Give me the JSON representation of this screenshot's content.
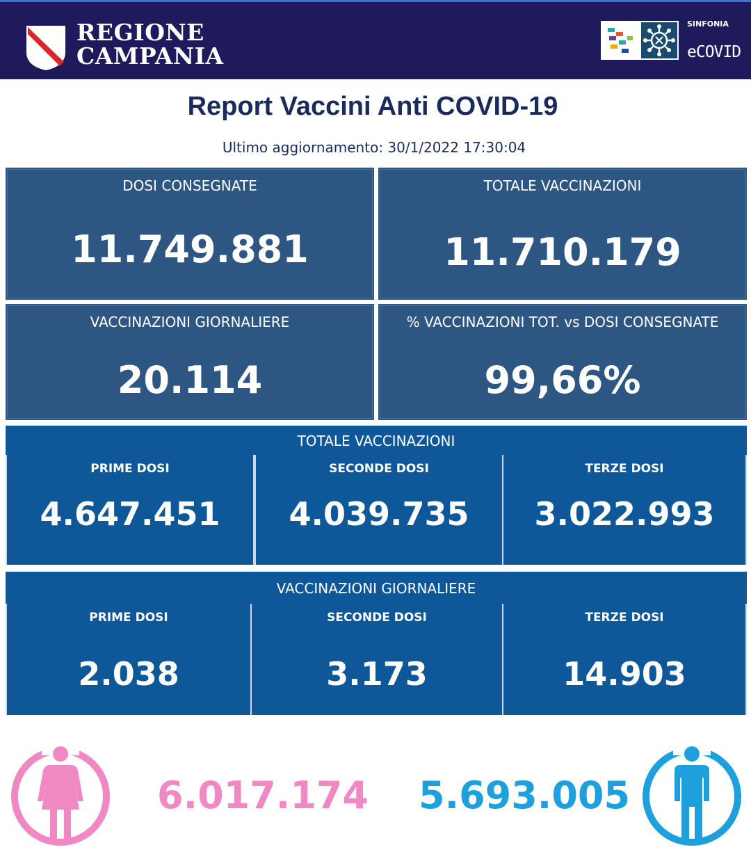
{
  "header": {
    "brand_line1": "REGIONE",
    "brand_line2": "CAMPANIA",
    "sinfonia": "SINFONIA",
    "ecovid": "eCOVID"
  },
  "report": {
    "title": "Report Vaccini Anti COVID-19",
    "updated": "Ultimo aggiornamento: 30/1/2022  17:30:04"
  },
  "cards": {
    "dosi_consegnate": {
      "label": "DOSI  CONSEGNATE",
      "value": "11.749.881"
    },
    "totale_vaccinazioni": {
      "label": "TOTALE VACCINAZIONI",
      "value": "11.710.179"
    },
    "vaccinazioni_giornaliere": {
      "label": "VACCINAZIONI GIORNALIERE",
      "value": "20.114"
    },
    "percentuale": {
      "label": "% VACCINAZIONI TOT. vs DOSI CONSEGNATE",
      "value": "99,66%"
    }
  },
  "totale_section": {
    "title": "TOTALE VACCINAZIONI",
    "prime": {
      "label": "PRIME DOSI",
      "value": "4.647.451"
    },
    "seconde": {
      "label": "SECONDE DOSI",
      "value": "4.039.735"
    },
    "terze": {
      "label": "TERZE DOSI",
      "value": "3.022.993"
    }
  },
  "giornaliere_section": {
    "title": "VACCINAZIONI GIORNALIERE",
    "prime": {
      "label": "PRIME DOSI",
      "value": "2.038"
    },
    "seconde": {
      "label": "SECONDE DOSI",
      "value": "3.173"
    },
    "terze": {
      "label": "TERZE DOSI",
      "value": "14.903"
    }
  },
  "gender": {
    "female_value": "6.017.174",
    "male_value": "5.693.005",
    "female_color": "#f088c3",
    "male_color": "#1ea0dc"
  }
}
